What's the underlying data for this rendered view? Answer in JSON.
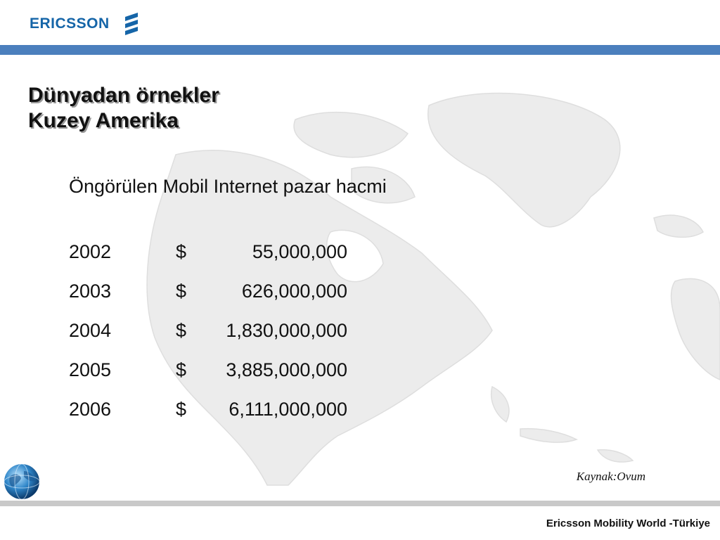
{
  "header": {
    "logo_text": "ERICSSON",
    "accent_color": "#4b7fbd",
    "logo_color": "#1565a8"
  },
  "slide": {
    "title_line1": "Dünyadan örnekler",
    "title_line2": "Kuzey Amerika",
    "subtitle": "Öngörülen Mobil Internet pazar hacmi",
    "rows": [
      {
        "year": "2002",
        "currency": "$",
        "amount": "55,000,000"
      },
      {
        "year": "2003",
        "currency": "$",
        "amount": "626,000,000"
      },
      {
        "year": "2004",
        "currency": "$",
        "amount": "1,830,000,000"
      },
      {
        "year": "2005",
        "currency": "$",
        "amount": "3,885,000,000"
      },
      {
        "year": "2006",
        "currency": "$",
        "amount": "6,111,000,000"
      }
    ],
    "source": "Kaynak:Ovum"
  },
  "footer": {
    "text": "Ericsson Mobility World -Türkiye"
  },
  "icons": {
    "logo_mark": "ericsson-stripes-icon",
    "globe": "globe-icon",
    "background": "world-map-watermark"
  }
}
